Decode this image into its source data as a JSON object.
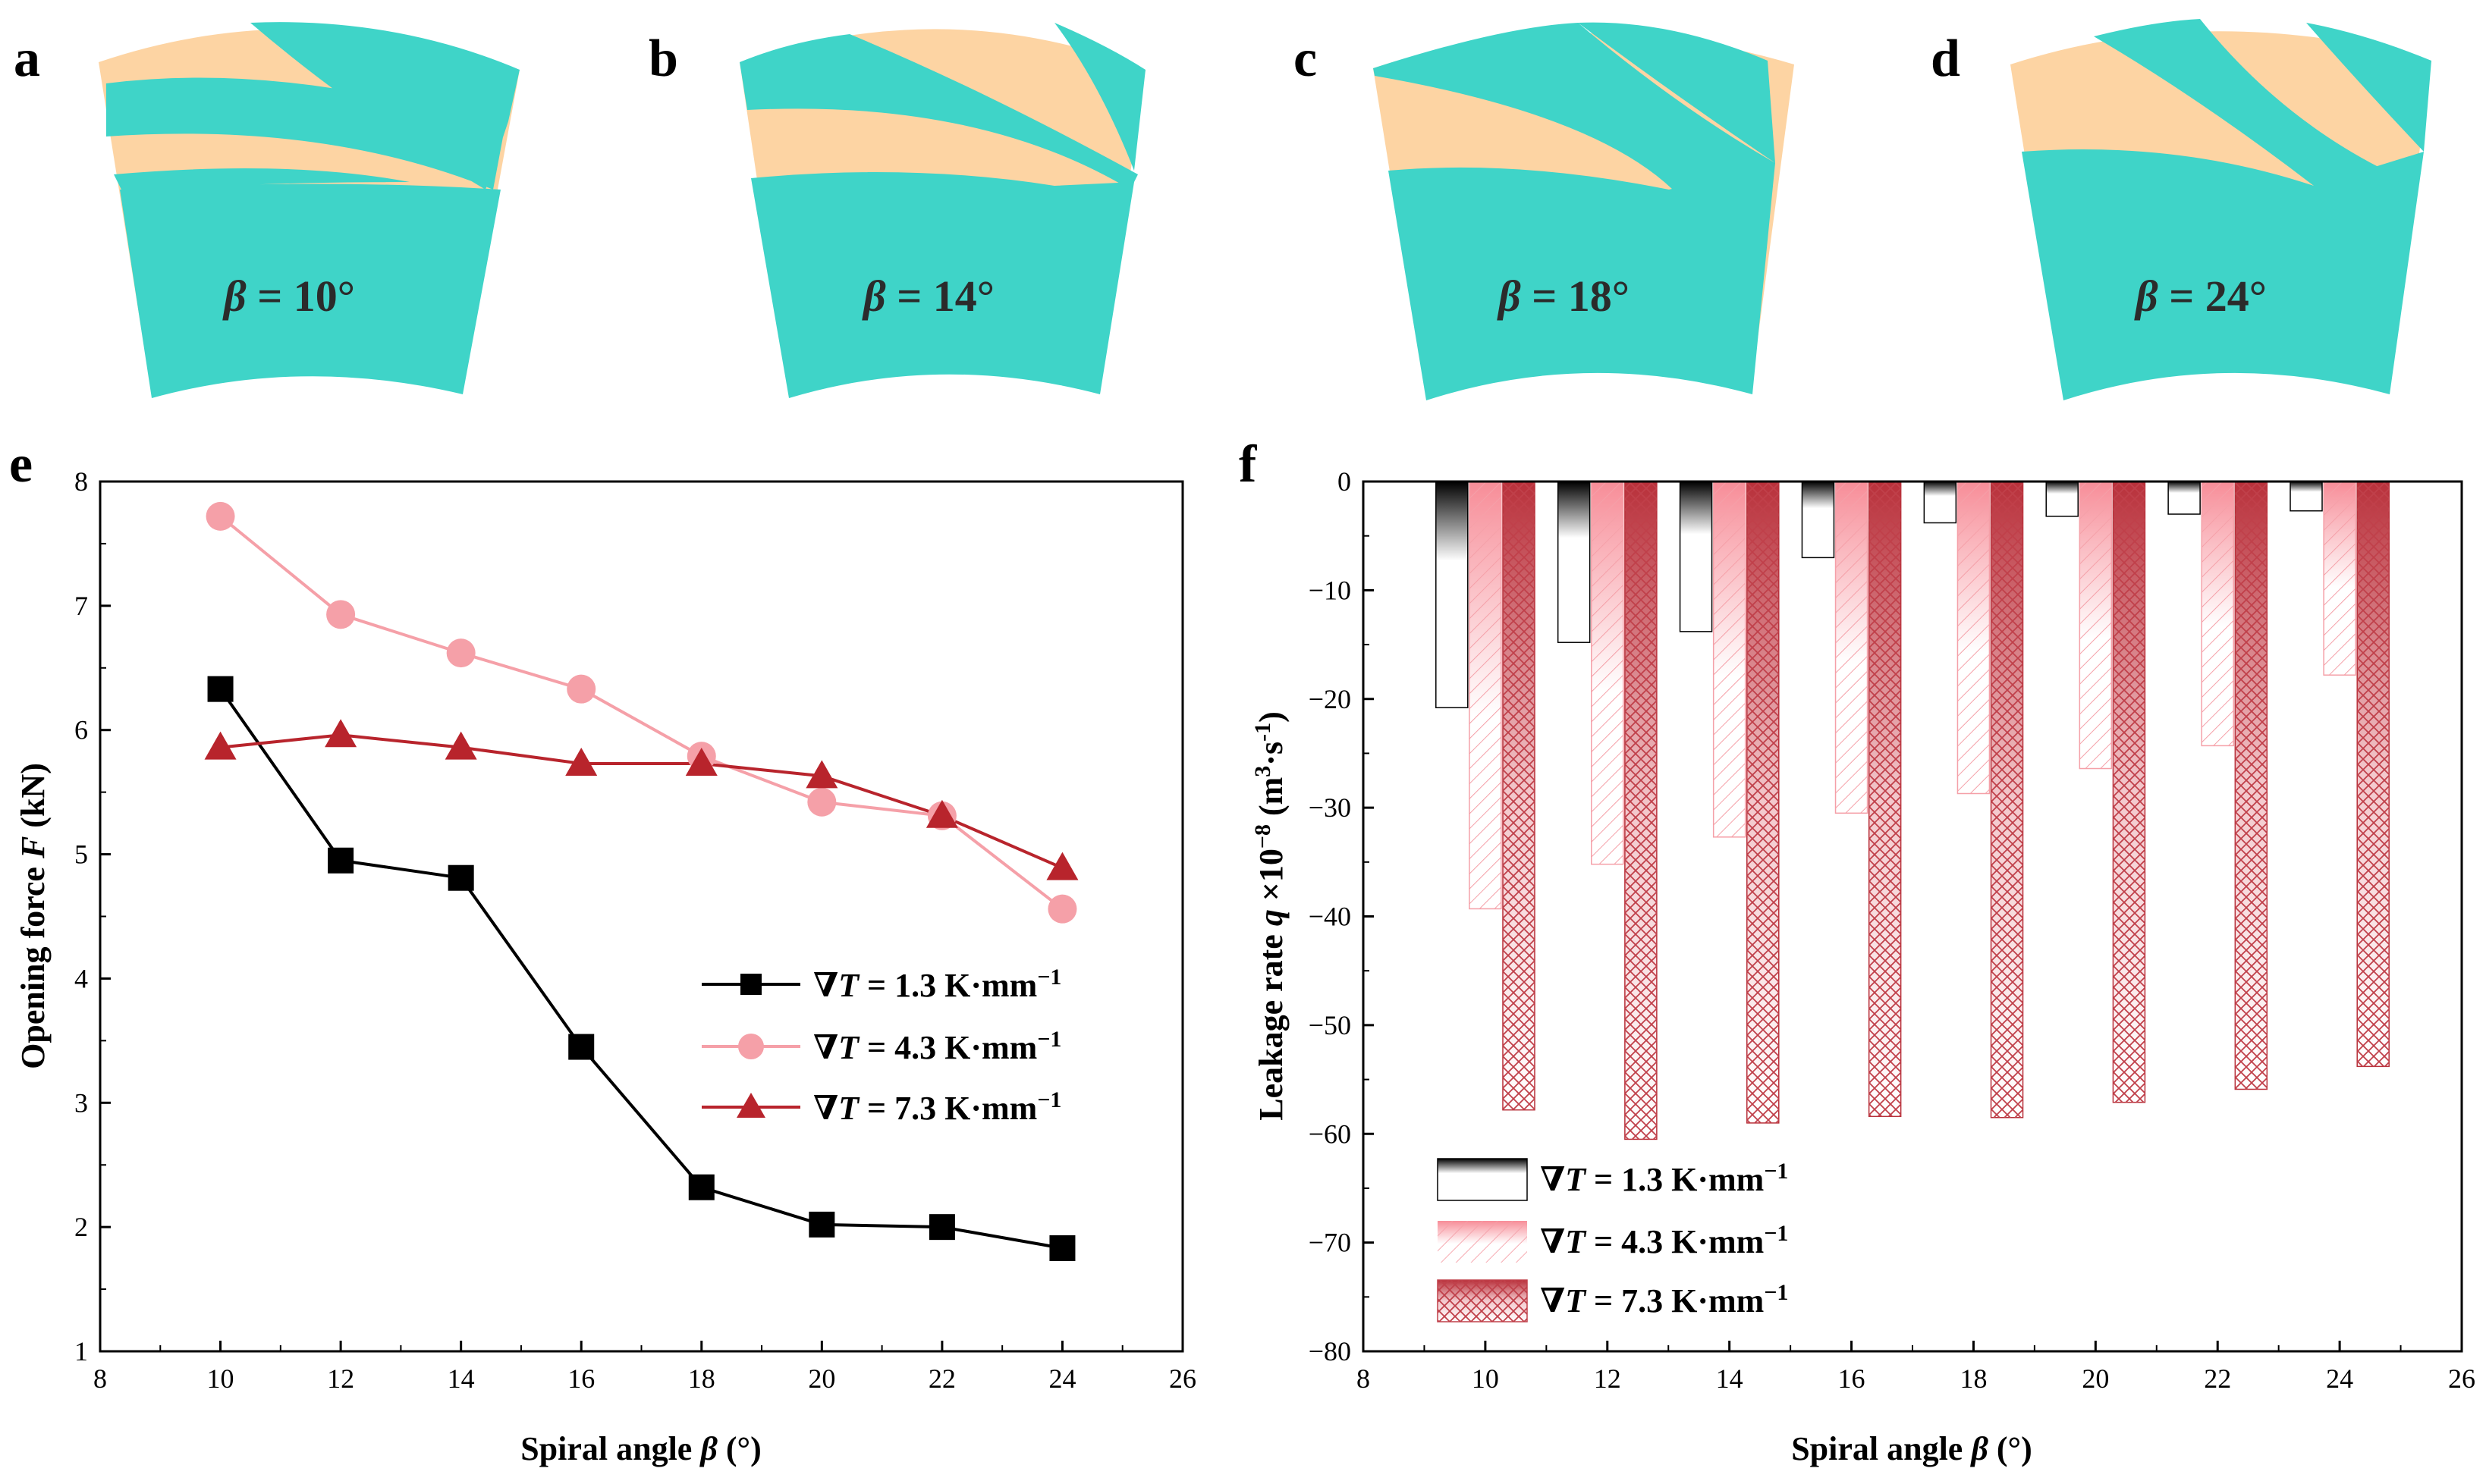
{
  "colors": {
    "teal": "#3fd4c8",
    "peach": "#fdd4a3",
    "black": "#000000",
    "pink": "#f5a0a8",
    "darkred": "#b8242c",
    "barBlack": "#111111",
    "barPink": "#f78d98",
    "barRed": "#b8303a"
  },
  "panels_top": [
    {
      "letter": "a",
      "beta": "β",
      "value": " = 10°"
    },
    {
      "letter": "b",
      "beta": "β",
      "value": " = 14°"
    },
    {
      "letter": "c",
      "beta": "β",
      "value": " = 18°"
    },
    {
      "letter": "d",
      "beta": "β",
      "value": " = 24°"
    }
  ],
  "chart_data": [
    {
      "panel": "e",
      "type": "line",
      "xlabel_pre": "Spiral angle ",
      "xlabel_sym": "β",
      "xlabel_post": " (°)",
      "ylabel_pre": "Opening force ",
      "ylabel_sym": "F",
      "ylabel_post": " (kN)",
      "xlim": [
        8,
        26
      ],
      "ylim": [
        1,
        8
      ],
      "xticks": [
        8,
        10,
        12,
        14,
        16,
        18,
        20,
        22,
        24,
        26
      ],
      "yticks": [
        1,
        2,
        3,
        4,
        5,
        6,
        7,
        8
      ],
      "x": [
        10,
        12,
        14,
        16,
        18,
        20,
        22,
        24
      ],
      "series": [
        {
          "name_pre": "∇",
          "name_sym": "T",
          "name_post": " = 1.3 K·mm",
          "name_sup": "−1",
          "marker": "square",
          "color": "#000000",
          "values": [
            6.33,
            4.95,
            4.81,
            3.45,
            2.32,
            2.02,
            2.0,
            1.83
          ]
        },
        {
          "name_pre": "∇",
          "name_sym": "T",
          "name_post": " = 4.3 K·mm",
          "name_sup": "−1",
          "marker": "circle",
          "color": "#f5a0a8",
          "values": [
            7.72,
            6.93,
            6.62,
            6.33,
            5.79,
            5.42,
            5.31,
            4.56
          ]
        },
        {
          "name_pre": "∇",
          "name_sym": "T",
          "name_post": " = 7.3 K·mm",
          "name_sup": "−1",
          "marker": "triangle",
          "color": "#b8242c",
          "values": [
            5.86,
            5.96,
            5.86,
            5.73,
            5.73,
            5.63,
            5.31,
            4.89
          ]
        }
      ]
    },
    {
      "panel": "f",
      "type": "bar",
      "xlabel_pre": "Spiral angle ",
      "xlabel_sym": "β",
      "xlabel_post": " (°)",
      "ylabel_pre": "Leakage rate ",
      "ylabel_sym": "q",
      "ylabel_post": " ×10",
      "ylabel_sup1": "−8",
      "ylabel_unit": " (m",
      "ylabel_sup2": "3",
      "ylabel_mid": "·s",
      "ylabel_sup3": "-1",
      "ylabel_end": ")",
      "xlim": [
        8,
        26
      ],
      "ylim": [
        -80,
        0
      ],
      "xticks": [
        8,
        10,
        12,
        14,
        16,
        18,
        20,
        22,
        24,
        26
      ],
      "yticks": [
        0,
        -10,
        -20,
        -30,
        -40,
        -50,
        -60,
        -70,
        -80
      ],
      "categories": [
        10,
        12,
        14,
        16,
        18,
        20,
        22,
        24
      ],
      "series": [
        {
          "name_pre": "∇",
          "name_sym": "T",
          "name_post": " = 1.3 K·mm",
          "name_sup": "−1",
          "values": [
            -20.8,
            -14.8,
            -13.8,
            -7.0,
            -3.8,
            -3.2,
            -3.0,
            -2.7
          ]
        },
        {
          "name_pre": "∇",
          "name_sym": "T",
          "name_post": " = 4.3 K·mm",
          "name_sup": "−1",
          "values": [
            -39.3,
            -35.2,
            -32.7,
            -30.5,
            -28.7,
            -26.4,
            -24.3,
            -17.8
          ]
        },
        {
          "name_pre": "∇",
          "name_sym": "T",
          "name_post": " = 7.3 K·mm",
          "name_sup": "−1",
          "values": [
            -57.8,
            -60.5,
            -59.0,
            -58.4,
            -58.5,
            -57.1,
            -55.9,
            -53.8
          ]
        }
      ]
    }
  ]
}
